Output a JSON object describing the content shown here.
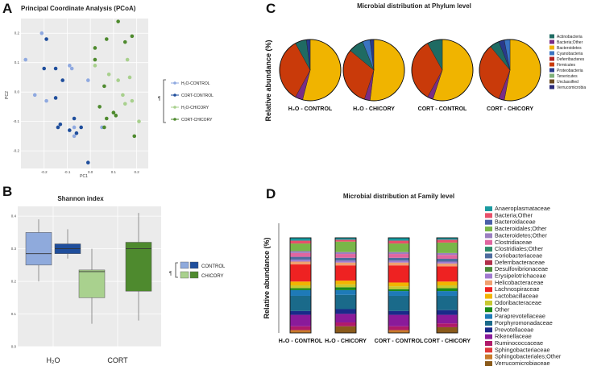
{
  "panels": {
    "a": "A",
    "b": "B",
    "c": "C",
    "d": "D"
  },
  "chart_data": [
    {
      "type": "scatter",
      "title": "Principal Coordinate Analysis (PCoA)",
      "xlabel": "PC1",
      "ylabel": "PC2",
      "xlim": [
        -0.3,
        0.25
      ],
      "ylim": [
        -0.26,
        0.25
      ],
      "xticks": [
        "-0.2",
        "-0.1",
        "0.0",
        "0.1",
        "0.2"
      ],
      "yticks": [
        "0.2",
        "0.1",
        "0.0",
        "-0.1",
        "-0.2"
      ],
      "legend_title": "¶",
      "series": [
        {
          "name": "H₂O-CONTROL",
          "color": "#8fa9e0",
          "points": [
            [
              -0.21,
              0.2
            ],
            [
              -0.28,
              0.11
            ],
            [
              -0.24,
              -0.01
            ],
            [
              -0.19,
              -0.03
            ],
            [
              -0.09,
              0.09
            ],
            [
              -0.08,
              0.08
            ],
            [
              -0.07,
              -0.12
            ],
            [
              -0.07,
              -0.15
            ],
            [
              -0.01,
              0.04
            ],
            [
              0.05,
              -0.12
            ]
          ]
        },
        {
          "name": "CORT-CONTROL",
          "color": "#1f4e9c",
          "points": [
            [
              -0.19,
              0.18
            ],
            [
              -0.2,
              0.08
            ],
            [
              -0.15,
              0.08
            ],
            [
              -0.12,
              0.04
            ],
            [
              -0.15,
              -0.02
            ],
            [
              -0.07,
              -0.09
            ],
            [
              -0.13,
              -0.11
            ],
            [
              -0.14,
              -0.12
            ],
            [
              -0.09,
              -0.13
            ],
            [
              -0.04,
              -0.12
            ],
            [
              -0.06,
              -0.14
            ],
            [
              -0.01,
              -0.24
            ]
          ]
        },
        {
          "name": "H₂O-CHICORY",
          "color": "#a8d08d",
          "points": [
            [
              0.02,
              0.09
            ],
            [
              0.08,
              0.06
            ],
            [
              0.12,
              0.04
            ],
            [
              0.16,
              0.11
            ],
            [
              0.17,
              0.05
            ],
            [
              0.14,
              -0.01
            ],
            [
              0.15,
              -0.04
            ],
            [
              0.1,
              -0.07
            ],
            [
              0.18,
              -0.03
            ],
            [
              0.21,
              -0.1
            ]
          ]
        },
        {
          "name": "CORT-CHICORY",
          "color": "#4e8a2e",
          "points": [
            [
              0.12,
              0.24
            ],
            [
              0.18,
              0.19
            ],
            [
              0.07,
              0.18
            ],
            [
              0.02,
              0.15
            ],
            [
              0.15,
              0.17
            ],
            [
              0.02,
              0.11
            ],
            [
              0.06,
              0.02
            ],
            [
              0.07,
              -0.09
            ],
            [
              0.04,
              -0.05
            ],
            [
              0.11,
              -0.08
            ],
            [
              0.06,
              -0.12
            ],
            [
              0.19,
              -0.15
            ],
            [
              0.1,
              -0.07
            ]
          ]
        }
      ]
    },
    {
      "type": "box",
      "title": "Shannon index",
      "categories": [
        "H₂O",
        "CORT"
      ],
      "ylim": [
        0.0,
        0.43
      ],
      "yticks": [
        "0.4",
        "0.3",
        "0.2",
        "0.1",
        "0.0"
      ],
      "legend_title": "¶",
      "series": [
        {
          "name": "CONTROL",
          "color": "#2c5aa0",
          "boxes": [
            {
              "fill": "#8faadc",
              "min": 0.2,
              "q1": 0.25,
              "median": 0.285,
              "q3": 0.35,
              "max": 0.39
            },
            {
              "fill": "#a9d18e",
              "min": 0.07,
              "q1": 0.15,
              "median": 0.23,
              "q3": 0.235,
              "max": 0.3
            }
          ]
        },
        {
          "name": "CHICORY",
          "color": "#a9d18e",
          "boxes": [
            {
              "fill": "#1f4e9c",
              "min": 0.27,
              "q1": 0.285,
              "median": 0.3,
              "q3": 0.315,
              "max": 0.36
            },
            {
              "fill": "#4e8a2e",
              "min": 0.08,
              "q1": 0.17,
              "median": 0.3,
              "q3": 0.32,
              "max": 0.41
            }
          ]
        }
      ]
    },
    {
      "type": "pie",
      "title": "Microbial distribution at Phylum level",
      "ylabel": "Relative abundance (%)",
      "groups": [
        "H₂O - CONTROL",
        "H₂O - CHICORY",
        "CORT - CONTROL",
        "CORT - CHICORY"
      ],
      "legend": [
        {
          "name": "Actinobacteria",
          "color": "#1f6b63"
        },
        {
          "name": "Bacteria;Other",
          "color": "#7a2d86"
        },
        {
          "name": "Bacteroidetes",
          "color": "#f0b400"
        },
        {
          "name": "Cyanobacteria",
          "color": "#3a74c2"
        },
        {
          "name": "Deferribacteres",
          "color": "#b22222"
        },
        {
          "name": "Firmicutes",
          "color": "#c93a0a"
        },
        {
          "name": "Proteobacteria",
          "color": "#283a8c"
        },
        {
          "name": "Tenericutes",
          "color": "#7fb07a"
        },
        {
          "name": "Unclassified",
          "color": "#6b4a20"
        },
        {
          "name": "Verrucomicrobia",
          "color": "#2b2b7a"
        }
      ],
      "slices": [
        [
          {
            "name": "Bacteroidetes",
            "value": 54
          },
          {
            "name": "Bacteria;Other",
            "value": 4
          },
          {
            "name": "Firmicutes",
            "value": 34
          },
          {
            "name": "Actinobacteria",
            "value": 6
          },
          {
            "name": "Proteobacteria",
            "value": 2
          }
        ],
        [
          {
            "name": "Bacteroidetes",
            "value": 52
          },
          {
            "name": "Bacteria;Other",
            "value": 3
          },
          {
            "name": "Firmicutes",
            "value": 31
          },
          {
            "name": "Actinobacteria",
            "value": 8
          },
          {
            "name": "Cyanobacteria",
            "value": 4
          },
          {
            "name": "Proteobacteria",
            "value": 2
          }
        ],
        [
          {
            "name": "Bacteroidetes",
            "value": 55
          },
          {
            "name": "Bacteria;Other",
            "value": 3
          },
          {
            "name": "Firmicutes",
            "value": 34
          },
          {
            "name": "Actinobacteria",
            "value": 8
          }
        ],
        [
          {
            "name": "Bacteroidetes",
            "value": 53
          },
          {
            "name": "Bacteria;Other",
            "value": 3
          },
          {
            "name": "Firmicutes",
            "value": 33
          },
          {
            "name": "Actinobacteria",
            "value": 5
          },
          {
            "name": "Proteobacteria",
            "value": 3
          },
          {
            "name": "Cyanobacteria",
            "value": 3
          }
        ]
      ]
    },
    {
      "type": "stacked-bar",
      "title": "Microbial distribution at Family level",
      "ylabel": "Relative abundance (%)",
      "categories": [
        "H₂O - CONTROL",
        "H₂O - CHICORY",
        "CORT - CONTROL",
        "CORT - CHICORY"
      ],
      "legend": [
        {
          "name": "Anaeroplasmataceae",
          "color": "#1a9aa0"
        },
        {
          "name": "Bacteria;Other",
          "color": "#e8506a"
        },
        {
          "name": "Bacteroidaceae",
          "color": "#4a5fa8"
        },
        {
          "name": "Bacteroidales;Other",
          "color": "#7ab648"
        },
        {
          "name": "Bacteroidetes;Other",
          "color": "#9b7fc0"
        },
        {
          "name": "Clostridiaceae",
          "color": "#e066a0"
        },
        {
          "name": "Clostridiales;Other",
          "color": "#2e8b6a"
        },
        {
          "name": "Coriobacteriaceae",
          "color": "#4d6b9e"
        },
        {
          "name": "Deferribacteraceae",
          "color": "#b0304a"
        },
        {
          "name": "Desulfovibrionaceae",
          "color": "#4a8a3a"
        },
        {
          "name": "Erysipelotrichaceae",
          "color": "#a07ad0"
        },
        {
          "name": "Helicobacteraceae",
          "color": "#f0a070"
        },
        {
          "name": "Lachnospiraceae",
          "color": "#ee2222"
        },
        {
          "name": "Lactobacillaceae",
          "color": "#f2b400"
        },
        {
          "name": "Odoribacteraceae",
          "color": "#c8c830"
        },
        {
          "name": "Other",
          "color": "#1a8a1a"
        },
        {
          "name": "Paraprevotellaceae",
          "color": "#1e7ab8"
        },
        {
          "name": "Porphyromonadaceae",
          "color": "#1a6a8a"
        },
        {
          "name": "Prevotellaceae",
          "color": "#1a2a8a"
        },
        {
          "name": "Rikenellaceae",
          "color": "#8a1a9a"
        },
        {
          "name": "Ruminococcaceae",
          "color": "#b01a6a"
        },
        {
          "name": "Sphingobacteriaceae",
          "color": "#e03a3a"
        },
        {
          "name": "Sphingobacteriales;Other",
          "color": "#c87a2a"
        },
        {
          "name": "Verrucomicrobiaceae",
          "color": "#8a5a1a"
        }
      ],
      "bars": [
        [
          {
            "name": "Sphingobacteriales;Other",
            "value": 3
          },
          {
            "name": "Ruminococcaceae",
            "value": 4
          },
          {
            "name": "Rikenellaceae",
            "value": 12
          },
          {
            "name": "Prevotellaceae",
            "value": 4
          },
          {
            "name": "Porphyromonadaceae",
            "value": 16
          },
          {
            "name": "Paraprevotellaceae",
            "value": 6
          },
          {
            "name": "Other",
            "value": 2
          },
          {
            "name": "Odoribacteraceae",
            "value": 3
          },
          {
            "name": "Lactobacillaceae",
            "value": 4
          },
          {
            "name": "Lachnospiraceae",
            "value": 18
          },
          {
            "name": "Helicobacteraceae",
            "value": 3
          },
          {
            "name": "Erysipelotrichaceae",
            "value": 2
          },
          {
            "name": "Coriobacteriaceae",
            "value": 3
          },
          {
            "name": "Clostridiaceae",
            "value": 4
          },
          {
            "name": "Bacteroidetes;Other",
            "value": 2
          },
          {
            "name": "Bacteroidales;Other",
            "value": 8
          },
          {
            "name": "Bacteria;Other",
            "value": 3
          },
          {
            "name": "Anaeroplasmataceae",
            "value": 3
          }
        ],
        [
          {
            "name": "Verrucomicrobiaceae",
            "value": 7
          },
          {
            "name": "Ruminococcaceae",
            "value": 4
          },
          {
            "name": "Rikenellaceae",
            "value": 9
          },
          {
            "name": "Prevotellaceae",
            "value": 5
          },
          {
            "name": "Porphyromonadaceae",
            "value": 15
          },
          {
            "name": "Paraprevotellaceae",
            "value": 5
          },
          {
            "name": "Other",
            "value": 3
          },
          {
            "name": "Odoribacteraceae",
            "value": 3
          },
          {
            "name": "Lactobacillaceae",
            "value": 4
          },
          {
            "name": "Lachnospiraceae",
            "value": 16
          },
          {
            "name": "Helicobacteraceae",
            "value": 3
          },
          {
            "name": "Erysipelotrichaceae",
            "value": 2
          },
          {
            "name": "Coriobacteriaceae",
            "value": 3
          },
          {
            "name": "Clostridiaceae",
            "value": 4
          },
          {
            "name": "Bacteroidetes;Other",
            "value": 2
          },
          {
            "name": "Bacteroidales;Other",
            "value": 11
          },
          {
            "name": "Bacteria;Other",
            "value": 2
          },
          {
            "name": "Anaeroplasmataceae",
            "value": 2
          }
        ],
        [
          {
            "name": "Sphingobacteriales;Other",
            "value": 3
          },
          {
            "name": "Ruminococcaceae",
            "value": 4
          },
          {
            "name": "Rikenellaceae",
            "value": 12
          },
          {
            "name": "Prevotellaceae",
            "value": 4
          },
          {
            "name": "Porphyromonadaceae",
            "value": 16
          },
          {
            "name": "Paraprevotellaceae",
            "value": 5
          },
          {
            "name": "Other",
            "value": 2
          },
          {
            "name": "Odoribacteraceae",
            "value": 3
          },
          {
            "name": "Lactobacillaceae",
            "value": 4
          },
          {
            "name": "Lachnospiraceae",
            "value": 18
          },
          {
            "name": "Helicobacteraceae",
            "value": 3
          },
          {
            "name": "Erysipelotrichaceae",
            "value": 2
          },
          {
            "name": "Coriobacteriaceae",
            "value": 3
          },
          {
            "name": "Clostridiaceae",
            "value": 4
          },
          {
            "name": "Bacteroidetes;Other",
            "value": 2
          },
          {
            "name": "Bacteroidales;Other",
            "value": 9
          },
          {
            "name": "Bacteria;Other",
            "value": 3
          },
          {
            "name": "Anaeroplasmataceae",
            "value": 3
          }
        ],
        [
          {
            "name": "Verrucomicrobiaceae",
            "value": 6
          },
          {
            "name": "Ruminococcaceae",
            "value": 4
          },
          {
            "name": "Rikenellaceae",
            "value": 9
          },
          {
            "name": "Prevotellaceae",
            "value": 5
          },
          {
            "name": "Porphyromonadaceae",
            "value": 15
          },
          {
            "name": "Paraprevotellaceae",
            "value": 5
          },
          {
            "name": "Other",
            "value": 3
          },
          {
            "name": "Odoribacteraceae",
            "value": 3
          },
          {
            "name": "Lactobacillaceae",
            "value": 4
          },
          {
            "name": "Lachnospiraceae",
            "value": 16
          },
          {
            "name": "Helicobacteraceae",
            "value": 3
          },
          {
            "name": "Erysipelotrichaceae",
            "value": 2
          },
          {
            "name": "Coriobacteriaceae",
            "value": 3
          },
          {
            "name": "Clostridiaceae",
            "value": 4
          },
          {
            "name": "Bacteroidetes;Other",
            "value": 2
          },
          {
            "name": "Bacteroidales;Other",
            "value": 11
          },
          {
            "name": "Bacteria;Other",
            "value": 3
          },
          {
            "name": "Anaeroplasmataceae",
            "value": 2
          }
        ]
      ]
    }
  ]
}
